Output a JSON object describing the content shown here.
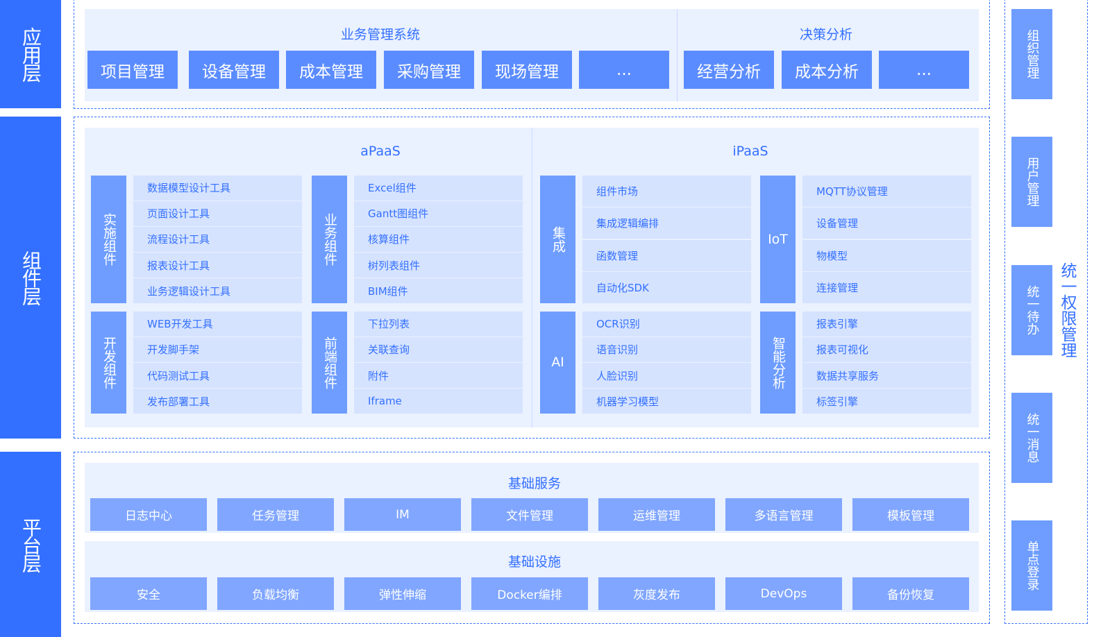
{
  "layers": {
    "app": "应用层",
    "component": "组件层",
    "platform": "平台层"
  },
  "app": {
    "business": {
      "title": "业务管理系统",
      "items": [
        "项目管理",
        "设备管理",
        "成本管理",
        "采购管理",
        "现场管理",
        "..."
      ]
    },
    "decision": {
      "title": "决策分析",
      "items": [
        "经营分析",
        "成本分析",
        "..."
      ]
    }
  },
  "component": {
    "apaas": {
      "title": "aPaaS",
      "groups": [
        {
          "label": "实施组件",
          "items": [
            "数据模型设计工具",
            "页面设计工具",
            "流程设计工具",
            "报表设计工具",
            "业务逻辑设计工具"
          ]
        },
        {
          "label": "业务组件",
          "items": [
            "Excel组件",
            "Gantt图组件",
            "核算组件",
            "树列表组件",
            "BIM组件"
          ]
        },
        {
          "label": "开发组件",
          "items": [
            "WEB开发工具",
            "开发脚手架",
            "代码测试工具",
            "发布部署工具"
          ]
        },
        {
          "label": "前端组件",
          "items": [
            "下拉列表",
            "关联查询",
            "附件",
            "Iframe"
          ]
        }
      ]
    },
    "ipaas": {
      "title": "iPaaS",
      "groups": [
        {
          "label": "集成",
          "items": [
            "组件市场",
            "集成逻辑编排",
            "函数管理",
            "自动化SDK"
          ]
        },
        {
          "label": "IoT",
          "items": [
            "MQTT协议管理",
            "设备管理",
            "物模型",
            "连接管理"
          ]
        },
        {
          "label": "AI",
          "items": [
            "OCR识别",
            "语音识别",
            "人脸识别",
            "机器学习模型"
          ]
        },
        {
          "label": "智能分析",
          "items": [
            "报表引擎",
            "报表可视化",
            "数据共享服务",
            "标签引擎"
          ]
        }
      ]
    }
  },
  "platform": {
    "services": {
      "title": "基础服务",
      "items": [
        "日志中心",
        "任务管理",
        "IM",
        "文件管理",
        "运维管理",
        "多语言管理",
        "模板管理"
      ]
    },
    "infra": {
      "title": "基础设施",
      "items": [
        "安全",
        "负载均衡",
        "弹性伸缩",
        "Docker编排",
        "灰度发布",
        "DevOps",
        "备份恢复"
      ]
    }
  },
  "side": {
    "title": "统一权限管理",
    "items": [
      "组织管理",
      "用户管理",
      "统一待办",
      "统一消息",
      "单点登录"
    ]
  }
}
